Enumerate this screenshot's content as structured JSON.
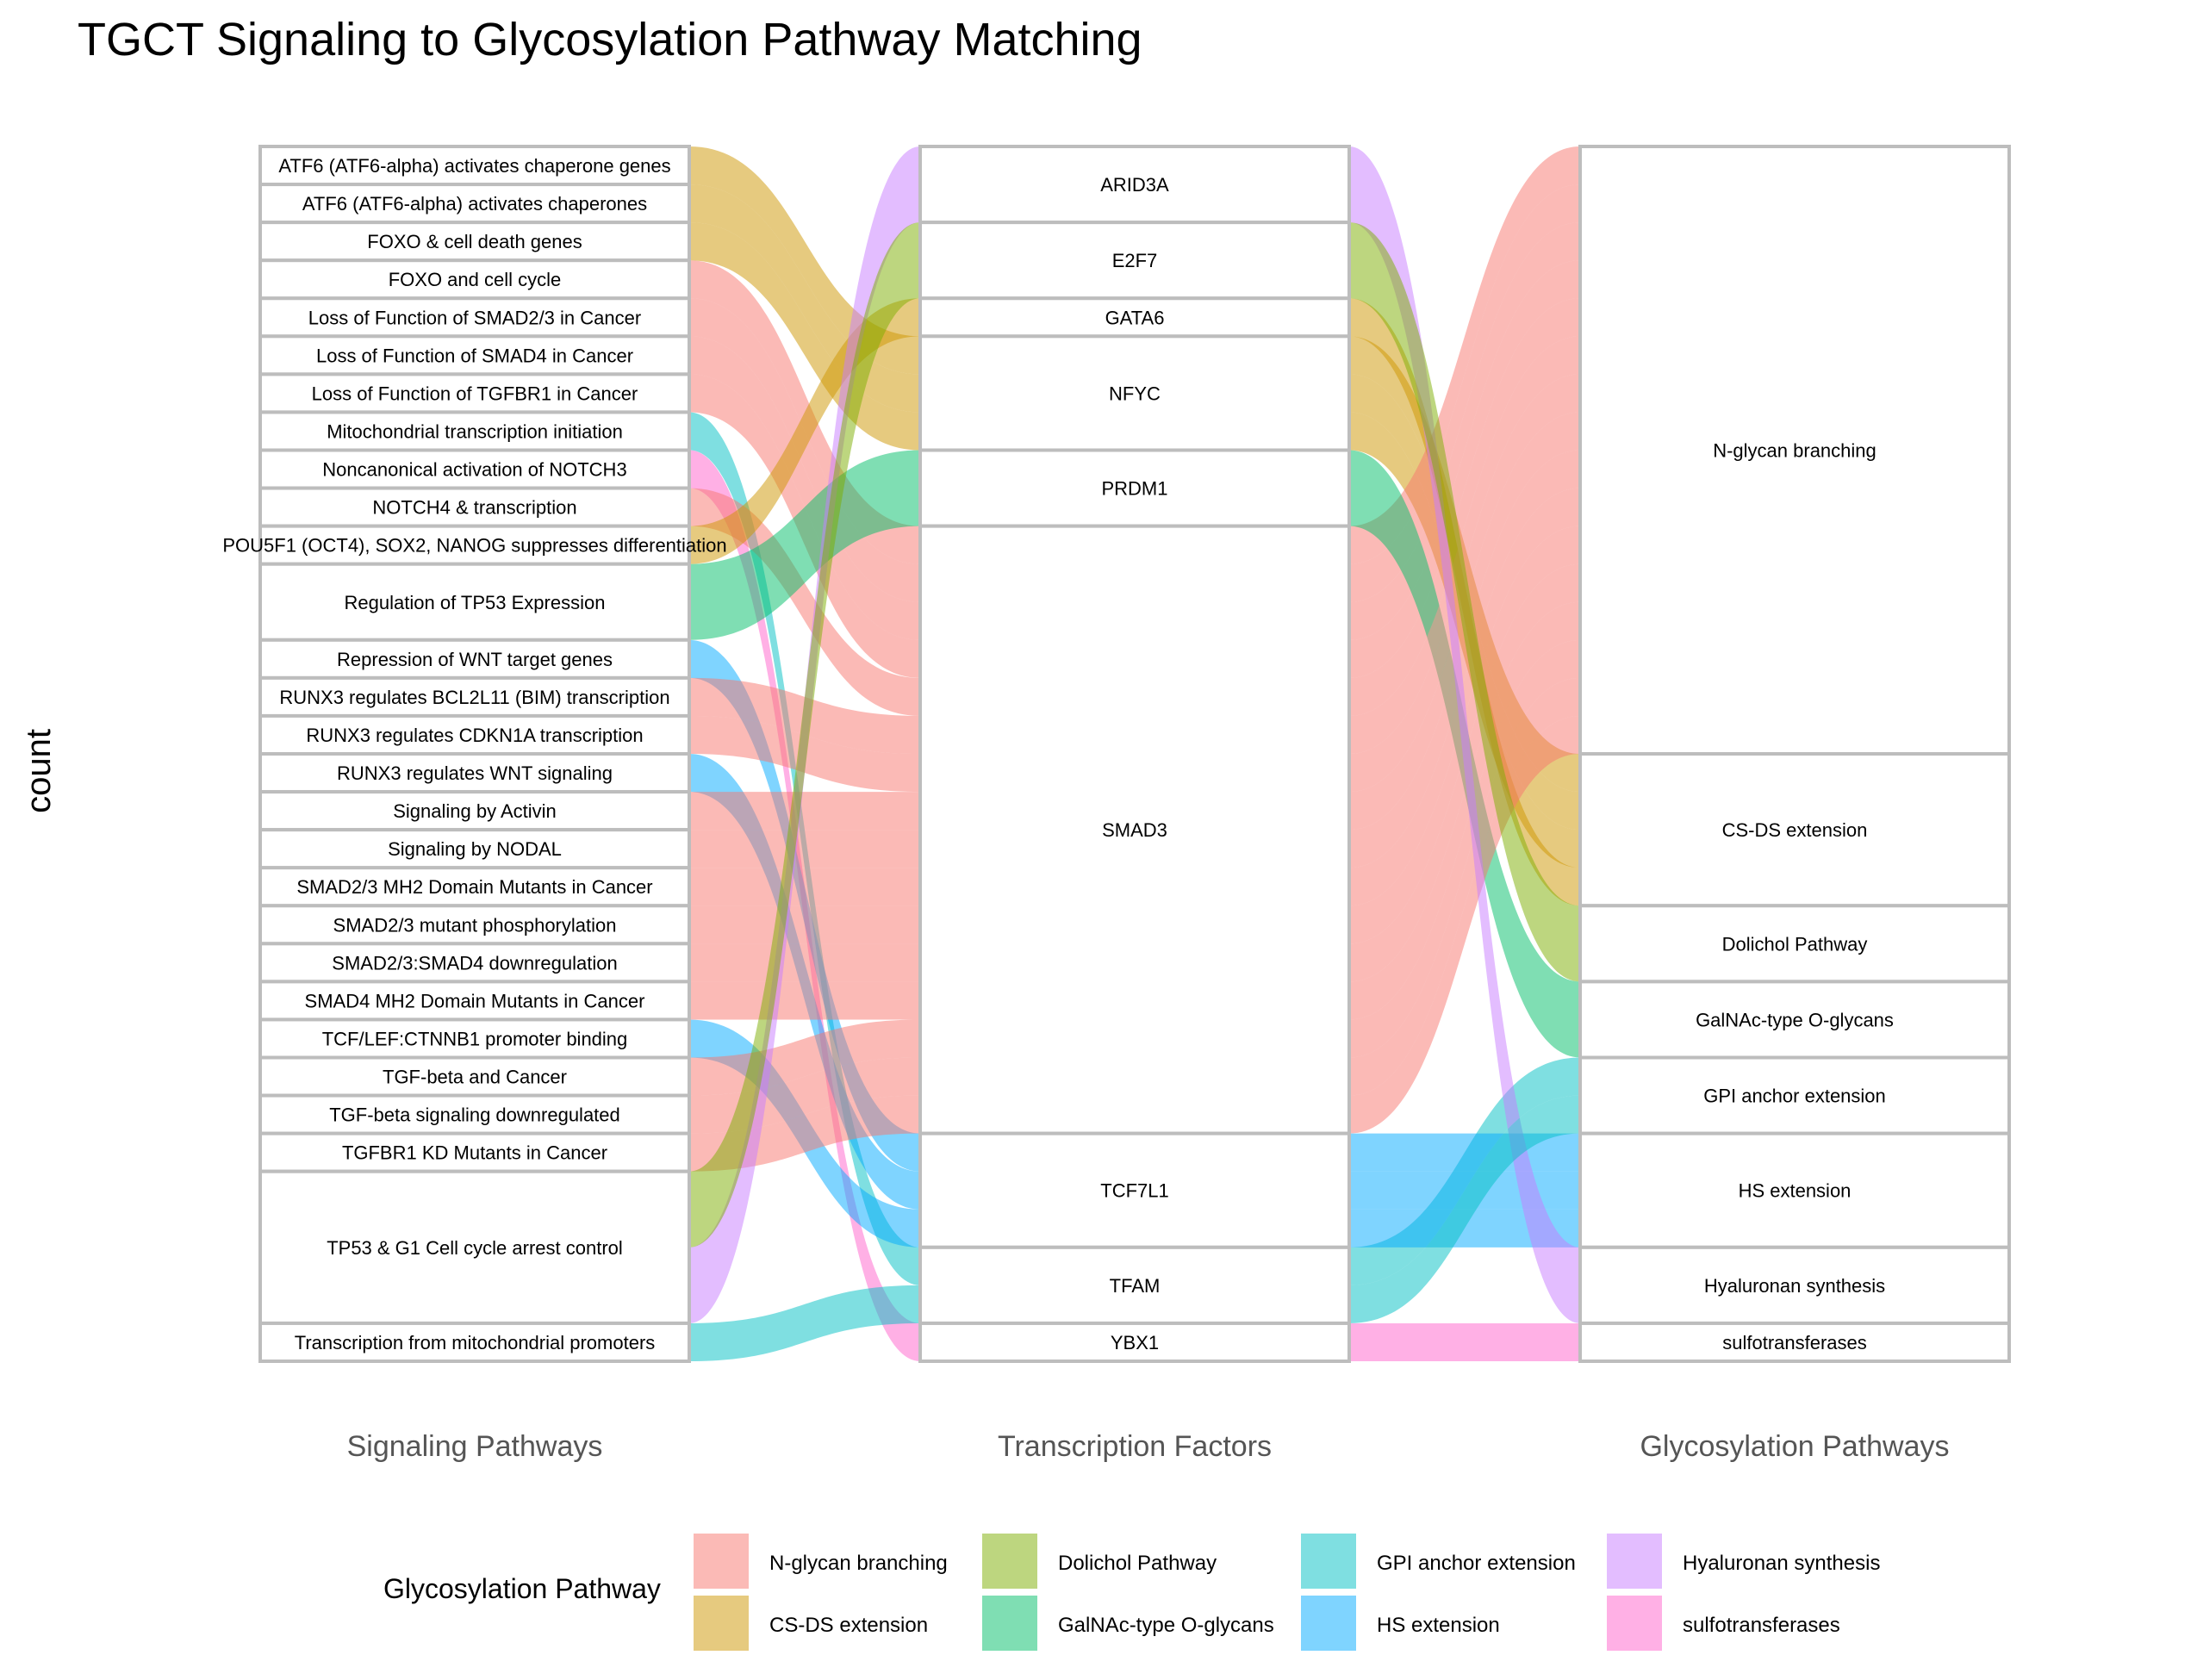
{
  "chart_data": {
    "type": "alluvial",
    "title": "TGCT Signaling to Glycosylation Pathway Matching",
    "ylabel": "count",
    "axes": [
      "Signaling Pathways",
      "Transcription Factors",
      "Glycosylation Pathways"
    ],
    "legend": {
      "title": "Glycosylation Pathway",
      "placement": "bottom",
      "items": [
        {
          "name": "N-glycan branching",
          "color": "#F8766D"
        },
        {
          "name": "CS-DS extension",
          "color": "#CD9600"
        },
        {
          "name": "Dolichol Pathway",
          "color": "#7CAE00"
        },
        {
          "name": "GalNAc-type O-glycans",
          "color": "#00BE67"
        },
        {
          "name": "GPI anchor extension",
          "color": "#00BFC4"
        },
        {
          "name": "HS extension",
          "color": "#00A9FF"
        },
        {
          "name": "Hyaluronan synthesis",
          "color": "#C77CFF"
        },
        {
          "name": "sulfotransferases",
          "color": "#FF61CC"
        }
      ]
    },
    "strata": {
      "signaling": [
        {
          "name": "ATF6 (ATF6-alpha) activates chaperone genes",
          "count": 1
        },
        {
          "name": "ATF6 (ATF6-alpha) activates chaperones",
          "count": 1
        },
        {
          "name": "FOXO & cell death genes",
          "count": 1
        },
        {
          "name": "FOXO and cell cycle",
          "count": 1
        },
        {
          "name": "Loss of Function of SMAD2/3 in Cancer",
          "count": 1
        },
        {
          "name": "Loss of Function of SMAD4 in Cancer",
          "count": 1
        },
        {
          "name": "Loss of Function of TGFBR1 in Cancer",
          "count": 1
        },
        {
          "name": "Mitochondrial transcription initiation",
          "count": 1
        },
        {
          "name": "Noncanonical activation of NOTCH3",
          "count": 1
        },
        {
          "name": "NOTCH4 & transcription",
          "count": 1
        },
        {
          "name": "POU5F1 (OCT4), SOX2, NANOG suppresses differentiation",
          "count": 1
        },
        {
          "name": "Regulation of TP53 Expression",
          "count": 2
        },
        {
          "name": "Repression of WNT target genes",
          "count": 1
        },
        {
          "name": "RUNX3 regulates BCL2L11 (BIM) transcription",
          "count": 1
        },
        {
          "name": "RUNX3 regulates CDKN1A transcription",
          "count": 1
        },
        {
          "name": "RUNX3 regulates WNT signaling",
          "count": 1
        },
        {
          "name": "Signaling by Activin",
          "count": 1
        },
        {
          "name": "Signaling by NODAL",
          "count": 1
        },
        {
          "name": "SMAD2/3 MH2 Domain Mutants in Cancer",
          "count": 1
        },
        {
          "name": "SMAD2/3 mutant phosphorylation",
          "count": 1
        },
        {
          "name": "SMAD2/3:SMAD4 downregulation",
          "count": 1
        },
        {
          "name": "SMAD4 MH2 Domain Mutants in Cancer",
          "count": 1
        },
        {
          "name": "TCF/LEF:CTNNB1 promoter binding",
          "count": 1
        },
        {
          "name": "TGF-beta and Cancer",
          "count": 1
        },
        {
          "name": "TGF-beta signaling downregulated",
          "count": 1
        },
        {
          "name": "TGFBR1 KD Mutants in Cancer",
          "count": 1
        },
        {
          "name": "TP53 & G1 Cell cycle arrest control",
          "count": 4
        },
        {
          "name": "Transcription from mitochondrial promoters",
          "count": 1
        }
      ],
      "transcription_factors": [
        {
          "name": "ARID3A",
          "count": 2
        },
        {
          "name": "E2F7",
          "count": 2
        },
        {
          "name": "GATA6",
          "count": 1
        },
        {
          "name": "NFYC",
          "count": 3
        },
        {
          "name": "PRDM1",
          "count": 2
        },
        {
          "name": "SMAD3",
          "count": 16
        },
        {
          "name": "TCF7L1",
          "count": 3
        },
        {
          "name": "TFAM",
          "count": 2
        },
        {
          "name": "YBX1",
          "count": 1
        }
      ],
      "glycosylation": [
        {
          "name": "N-glycan branching",
          "count": 16
        },
        {
          "name": "CS-DS extension",
          "count": 4
        },
        {
          "name": "Dolichol Pathway",
          "count": 2
        },
        {
          "name": "GalNAc-type O-glycans",
          "count": 2
        },
        {
          "name": "GPI anchor extension",
          "count": 2
        },
        {
          "name": "HS extension",
          "count": 3
        },
        {
          "name": "Hyaluronan synthesis",
          "count": 2
        },
        {
          "name": "sulfotransferases",
          "count": 1
        }
      ]
    },
    "flows": [
      {
        "signaling": "ATF6 (ATF6-alpha) activates chaperone genes",
        "tf": "NFYC",
        "glyco": "CS-DS extension",
        "count": 1
      },
      {
        "signaling": "ATF6 (ATF6-alpha) activates chaperones",
        "tf": "NFYC",
        "glyco": "CS-DS extension",
        "count": 1
      },
      {
        "signaling": "FOXO & cell death genes",
        "tf": "NFYC",
        "glyco": "CS-DS extension",
        "count": 1
      },
      {
        "signaling": "FOXO and cell cycle",
        "tf": "SMAD3",
        "glyco": "N-glycan branching",
        "count": 1
      },
      {
        "signaling": "Loss of Function of SMAD2/3 in Cancer",
        "tf": "SMAD3",
        "glyco": "N-glycan branching",
        "count": 1
      },
      {
        "signaling": "Loss of Function of SMAD4 in Cancer",
        "tf": "SMAD3",
        "glyco": "N-glycan branching",
        "count": 1
      },
      {
        "signaling": "Loss of Function of TGFBR1 in Cancer",
        "tf": "SMAD3",
        "glyco": "N-glycan branching",
        "count": 1
      },
      {
        "signaling": "Mitochondrial transcription initiation",
        "tf": "TFAM",
        "glyco": "GPI anchor extension",
        "count": 1
      },
      {
        "signaling": "Noncanonical activation of NOTCH3",
        "tf": "YBX1",
        "glyco": "sulfotransferases",
        "count": 1
      },
      {
        "signaling": "NOTCH4 & transcription",
        "tf": "SMAD3",
        "glyco": "N-glycan branching",
        "count": 1
      },
      {
        "signaling": "POU5F1 (OCT4), SOX2, NANOG suppresses differentiation",
        "tf": "GATA6",
        "glyco": "CS-DS extension",
        "count": 1
      },
      {
        "signaling": "Regulation of TP53 Expression",
        "tf": "PRDM1",
        "glyco": "GalNAc-type O-glycans",
        "count": 2
      },
      {
        "signaling": "Repression of WNT target genes",
        "tf": "TCF7L1",
        "glyco": "HS extension",
        "count": 1
      },
      {
        "signaling": "RUNX3 regulates BCL2L11 (BIM) transcription",
        "tf": "SMAD3",
        "glyco": "N-glycan branching",
        "count": 1
      },
      {
        "signaling": "RUNX3 regulates CDKN1A transcription",
        "tf": "SMAD3",
        "glyco": "N-glycan branching",
        "count": 1
      },
      {
        "signaling": "RUNX3 regulates WNT signaling",
        "tf": "TCF7L1",
        "glyco": "HS extension",
        "count": 1
      },
      {
        "signaling": "Signaling by Activin",
        "tf": "SMAD3",
        "glyco": "N-glycan branching",
        "count": 1
      },
      {
        "signaling": "Signaling by NODAL",
        "tf": "SMAD3",
        "glyco": "N-glycan branching",
        "count": 1
      },
      {
        "signaling": "SMAD2/3 MH2 Domain Mutants in Cancer",
        "tf": "SMAD3",
        "glyco": "N-glycan branching",
        "count": 1
      },
      {
        "signaling": "SMAD2/3 mutant phosphorylation",
        "tf": "SMAD3",
        "glyco": "N-glycan branching",
        "count": 1
      },
      {
        "signaling": "SMAD2/3:SMAD4 downregulation",
        "tf": "SMAD3",
        "glyco": "N-glycan branching",
        "count": 1
      },
      {
        "signaling": "SMAD4 MH2 Domain Mutants in Cancer",
        "tf": "SMAD3",
        "glyco": "N-glycan branching",
        "count": 1
      },
      {
        "signaling": "TCF/LEF:CTNNB1 promoter binding",
        "tf": "TCF7L1",
        "glyco": "HS extension",
        "count": 1
      },
      {
        "signaling": "TGF-beta and Cancer",
        "tf": "SMAD3",
        "glyco": "N-glycan branching",
        "count": 1
      },
      {
        "signaling": "TGF-beta signaling downregulated",
        "tf": "SMAD3",
        "glyco": "N-glycan branching",
        "count": 1
      },
      {
        "signaling": "TGFBR1 KD Mutants in Cancer",
        "tf": "SMAD3",
        "glyco": "N-glycan branching",
        "count": 1
      },
      {
        "signaling": "TP53 & G1 Cell cycle arrest control",
        "tf": "ARID3A",
        "glyco": "Hyaluronan synthesis",
        "count": 2
      },
      {
        "signaling": "TP53 & G1 Cell cycle arrest control",
        "tf": "E2F7",
        "glyco": "Dolichol Pathway",
        "count": 2
      },
      {
        "signaling": "Transcription from mitochondrial promoters",
        "tf": "TFAM",
        "glyco": "GPI anchor extension",
        "count": 1
      }
    ]
  }
}
